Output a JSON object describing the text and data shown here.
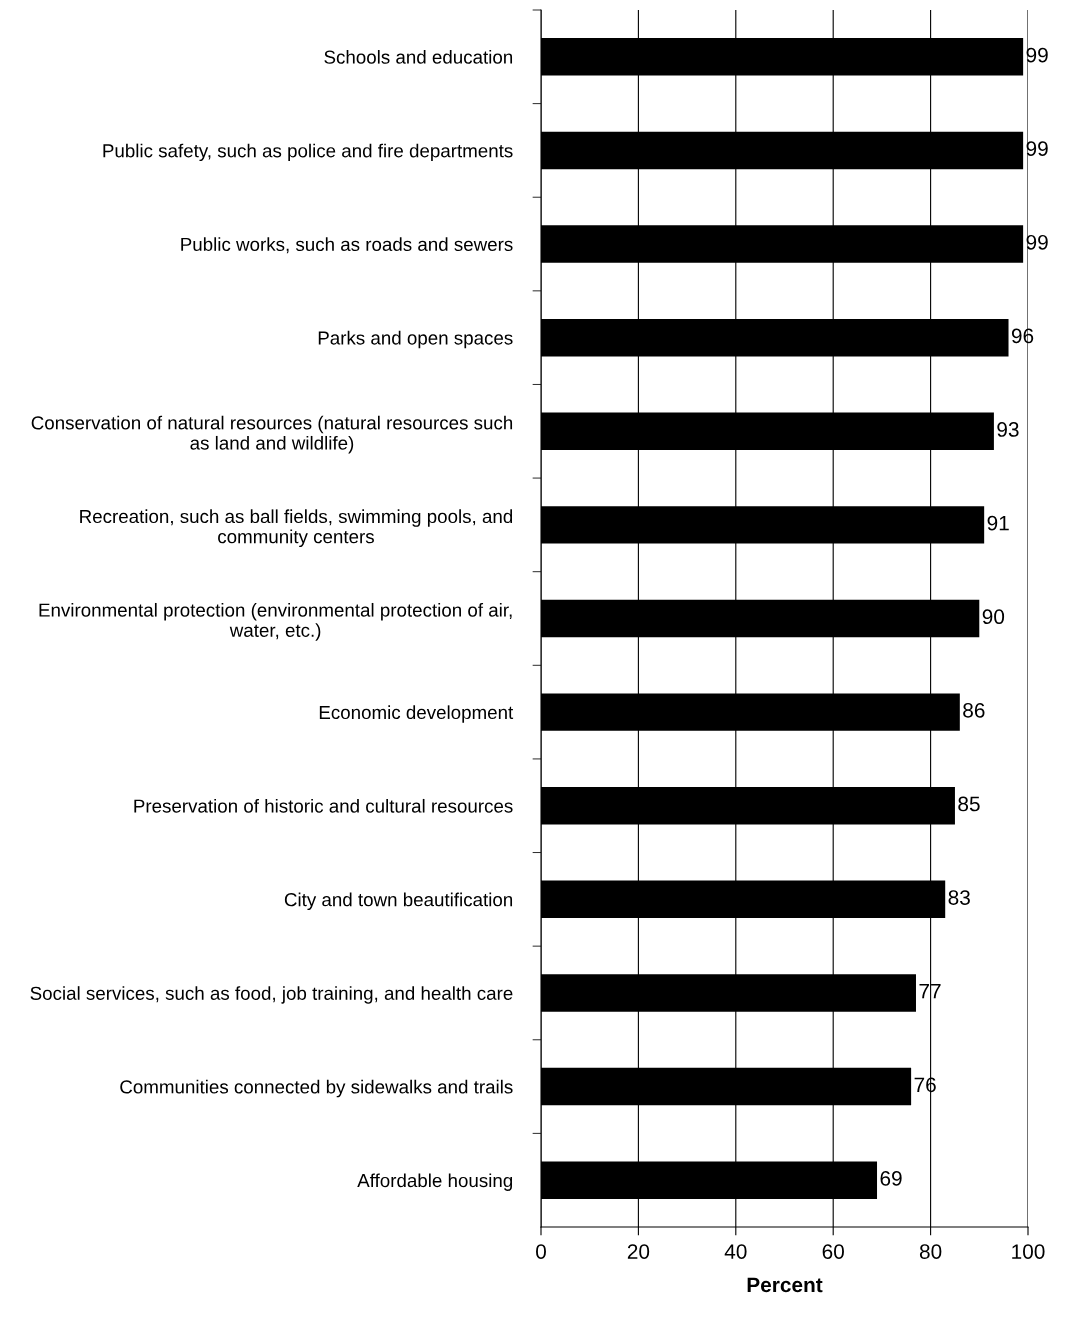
{
  "chart_data": {
    "type": "bar",
    "orientation": "horizontal",
    "xlabel": "Percent",
    "categories": [
      "Schools and education",
      "Public safety, such as police and fire departments",
      "Public works, such as roads and sewers",
      "Parks and open spaces",
      "Conservation of natural resources (natural resources such as land and wildlife)",
      "Recreation, such as ball fields, swimming pools, and community centers",
      "Environmental protection (environmental protection of air, water, etc.)",
      "Economic development",
      "Preservation of historic and cultural resources",
      "City and town beautification",
      "Social services, such as food, job training, and health care",
      "Communities connected by sidewalks and trails",
      "Affordable housing"
    ],
    "values": [
      99,
      99,
      99,
      96,
      93,
      91,
      90,
      86,
      85,
      83,
      77,
      76,
      69
    ],
    "color": "#000000",
    "xlim": [
      0,
      100
    ],
    "xticks": [
      0,
      20,
      40,
      60,
      80,
      100
    ],
    "grid": "x",
    "data_labels": true,
    "legend": false
  }
}
